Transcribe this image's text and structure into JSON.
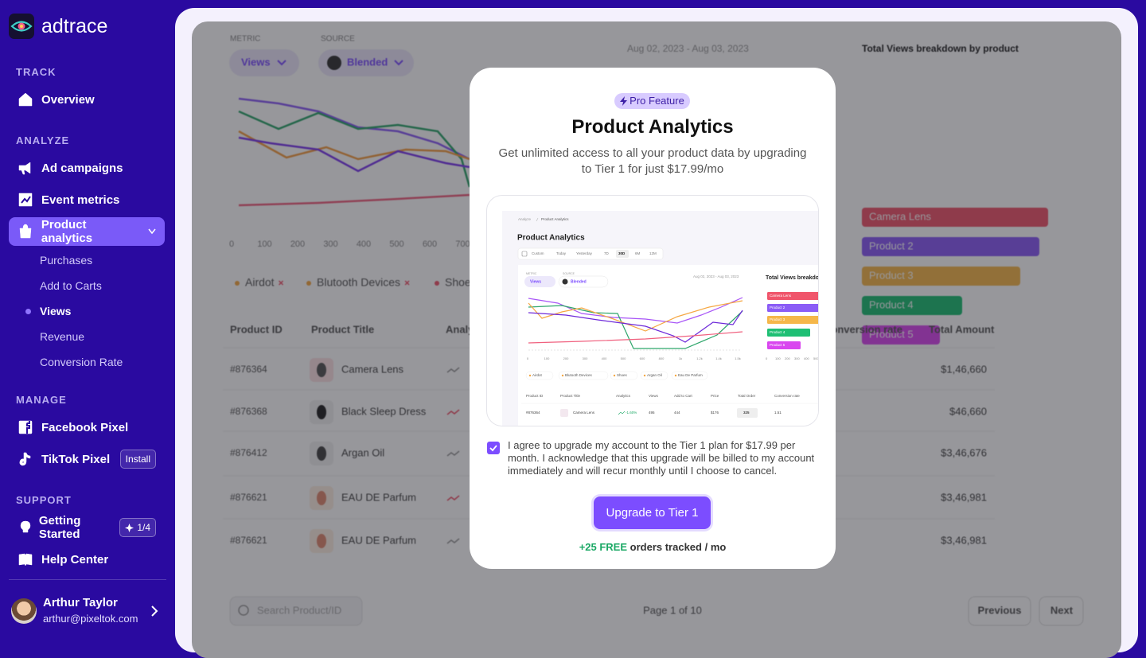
{
  "sidebar": {
    "brand": "adtrace",
    "sections": [
      {
        "label": "TRACK",
        "items": [
          {
            "label": "Overview"
          }
        ]
      },
      {
        "label": "ANALYZE",
        "items": [
          {
            "label": "Ad campaigns"
          },
          {
            "label": "Event metrics"
          },
          {
            "label": "Product analytics",
            "active": true,
            "sub_items": [
              {
                "label": "Purchases"
              },
              {
                "label": "Add to Carts"
              },
              {
                "label": "Views",
                "active": true
              },
              {
                "label": "Revenue"
              },
              {
                "label": "Conversion Rate"
              }
            ]
          }
        ]
      },
      {
        "label": "MANAGE",
        "items": [
          {
            "label": "Facebook Pixel"
          },
          {
            "label": "TikTok Pixel",
            "badge": "Install"
          }
        ]
      },
      {
        "label": "SUPPORT",
        "items": [
          {
            "label": "Getting Started",
            "badge": "1/4"
          },
          {
            "label": "Help Center"
          }
        ]
      }
    ],
    "user": {
      "name": "Arthur Taylor",
      "email": "arthur@pixeltok.com"
    }
  },
  "background": {
    "metric_label": "METRIC",
    "metric_value": "Views",
    "source_label": "SOURCE",
    "source_value": "Blended",
    "date_range": "Aug 02, 2023 - Aug 03, 2023",
    "breakdown_title": "Total Views breakdown by product",
    "x_ticks": [
      "0",
      "100",
      "200",
      "300",
      "400",
      "500",
      "600",
      "700"
    ],
    "breakdown_bars": [
      "Camera Lens",
      "Product 2",
      "Product 3",
      "Product 4",
      "Product 5"
    ],
    "legend": [
      "Airdot",
      "Blutooth Devices",
      "Shoes"
    ],
    "table": {
      "headers": [
        "Product ID",
        "Product Title",
        "Analytics",
        "Conversion rate",
        "Total Amount"
      ],
      "rows": [
        [
          "#876364",
          "Camera Lens",
          "$1,46,660"
        ],
        [
          "#876368",
          "Black Sleep Dress",
          "$46,660"
        ],
        [
          "#876412",
          "Argan Oil",
          "$3,46,676"
        ],
        [
          "#876621",
          "EAU DE Parfum",
          "$3,46,981"
        ],
        [
          "#876621",
          "EAU DE Parfum",
          "$3,46,981"
        ]
      ]
    },
    "search_placeholder": "Search Product/ID",
    "pagination": "Page 1 of 10",
    "previous": "Previous",
    "next": "Next"
  },
  "modal": {
    "badge": "Pro Feature",
    "title": "Product Analytics",
    "description": "Get unlimited access to all your product data by upgrading to Tier 1 for just $17.99/mo",
    "preview": {
      "breadcrumb": "Analyze",
      "breadcrumb_current": "Product Analytics",
      "title": "Product Analytics",
      "tabs": [
        "Custom",
        "Today",
        "Yesterday",
        "7D",
        "30D",
        "6M",
        "12M"
      ],
      "metric_label": "METRIC",
      "metric_value": "Views",
      "source_label": "SOURCE",
      "source_value": "Blended",
      "date_range": "Aug 02, 2023 - Aug 03, 2023",
      "breakdown_title": "Total Views breakdown by product",
      "breakdown_bars": [
        "Camera Lens",
        "Product 2",
        "Product 3",
        "Product 4",
        "Product 5"
      ],
      "x_ticks": [
        "0",
        "100",
        "200",
        "300",
        "400",
        "500",
        "600",
        "800",
        "1k",
        "1.2k",
        "1.4k",
        "1.5k"
      ],
      "bar_ticks": [
        "0",
        "100",
        "200",
        "300",
        "400",
        "500"
      ],
      "legend": [
        "Airdot",
        "Blutooth Devices",
        "Shoes",
        "Argan Oil",
        "Eau De Parfum"
      ],
      "table_headers": [
        "Product ID",
        "Product Title",
        "Analytics",
        "Views",
        "Add to Cart",
        "Price",
        "Total Order",
        "Conversion rate"
      ],
      "row": [
        "#876364",
        "Camera Lens",
        "-1.60%",
        "495",
        "444",
        "$176",
        "325",
        "1.51"
      ]
    },
    "agreement": "I agree to upgrade my account to the Tier 1 plan for $17.99 per month. I acknowledge that this upgrade will be billed to my account immediately and will recur monthly until I choose to cancel.",
    "button": "Upgrade to Tier 1",
    "footer_highlight": "+25 FREE",
    "footer_text": "orders tracked / mo"
  }
}
